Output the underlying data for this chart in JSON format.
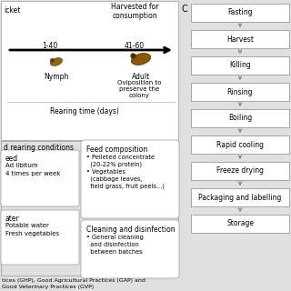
{
  "bg_color": "#e0e0e0",
  "white": "#ffffff",
  "border_color": "#999999",
  "flow_steps": [
    "Fasting",
    "Harvest",
    "Killing",
    "Rinsing",
    "Boiling",
    "Rapid cooling",
    "Freeze drying",
    "Packaging and labelling",
    "Storage"
  ],
  "timeline_harvested": "Harvested for\nconsumption",
  "timeline_periods": [
    "1-40",
    "41-60"
  ],
  "stage_labels": [
    "Nymph",
    "Adult"
  ],
  "oviposition_label": "Oviposition to\npreserve the\ncolony",
  "rearing_time_label": "Rearing time (days)",
  "feed_box_title": "Feed composition",
  "feed_line1": "• Pelleted concentrate",
  "feed_line2": "  (20-22% protein)",
  "feed_line3": "• Vegetables",
  "feed_line4": "  (cabbage leaves,",
  "feed_line5": "  field grass, fruit peels...)",
  "clean_box_title": "Cleaning and disinfection",
  "clean_line1": "• General cleaning",
  "clean_line2": "  and disinfection",
  "clean_line3": "  between batches",
  "lbox1_title": "eed",
  "lbox1_l1": "Ad libitum",
  "lbox1_l2": "4 times per week",
  "lbox2_title": "ater",
  "lbox2_l1": "Potable water",
  "lbox2_l2": "Fresh vegetables",
  "bottom_text1": "tices (GHP), Good Agricultural Practices (GAP) and",
  "bottom_text2": "Good Veterinary Practices (GVP)",
  "section_c": "C",
  "top_label": "icket",
  "rearing_label": "d rearing conditions"
}
